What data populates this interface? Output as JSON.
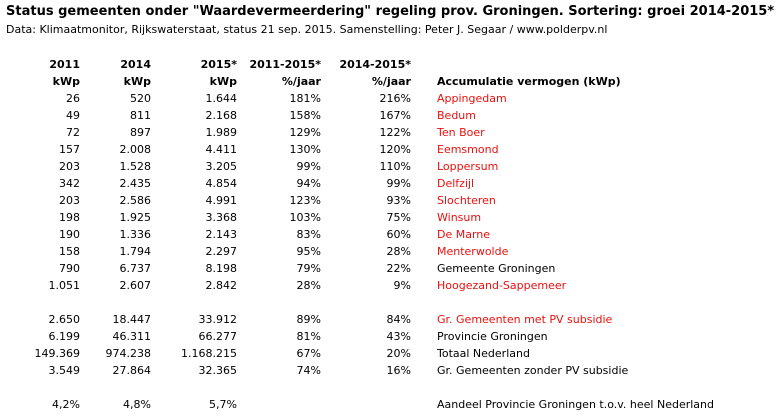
{
  "title": "Status gemeenten onder \"Waardevermeerdering\" regeling prov. Groningen. Sortering: groei 2014-2015*",
  "subtitle": "Data: Klimaatmonitor, Rijkswaterstaat, status 21 sep. 2015. Samenstelling: Peter J. Segaar / www.polderpv.nl",
  "headers": {
    "row1": [
      "2011",
      "2014",
      "2015*",
      "2011-2015*",
      "2014-2015*",
      ""
    ],
    "row2": [
      "kWp",
      "kWp",
      "kWp",
      "%/jaar",
      "%/jaar",
      "Accumulatie vermogen (kWp)"
    ]
  },
  "colors": {
    "red": "#e8110f",
    "black": "#000000"
  },
  "rows": [
    {
      "v2011": "26",
      "v2014": "520",
      "v2015": "1.644",
      "g1115": "181%",
      "g1415": "216%",
      "name": "Appingedam",
      "color": "red"
    },
    {
      "v2011": "49",
      "v2014": "811",
      "v2015": "2.168",
      "g1115": "158%",
      "g1415": "167%",
      "name": "Bedum",
      "color": "red"
    },
    {
      "v2011": "72",
      "v2014": "897",
      "v2015": "1.989",
      "g1115": "129%",
      "g1415": "122%",
      "name": "Ten Boer",
      "color": "red"
    },
    {
      "v2011": "157",
      "v2014": "2.008",
      "v2015": "4.411",
      "g1115": "130%",
      "g1415": "120%",
      "name": "Eemsmond",
      "color": "red"
    },
    {
      "v2011": "203",
      "v2014": "1.528",
      "v2015": "3.205",
      "g1115": "99%",
      "g1415": "110%",
      "name": "Loppersum",
      "color": "red"
    },
    {
      "v2011": "342",
      "v2014": "2.435",
      "v2015": "4.854",
      "g1115": "94%",
      "g1415": "99%",
      "name": "Delfzijl",
      "color": "red"
    },
    {
      "v2011": "203",
      "v2014": "2.586",
      "v2015": "4.991",
      "g1115": "123%",
      "g1415": "93%",
      "name": "Slochteren",
      "color": "red"
    },
    {
      "v2011": "198",
      "v2014": "1.925",
      "v2015": "3.368",
      "g1115": "103%",
      "g1415": "75%",
      "name": "Winsum",
      "color": "red"
    },
    {
      "v2011": "190",
      "v2014": "1.336",
      "v2015": "2.143",
      "g1115": "83%",
      "g1415": "60%",
      "name": "De Marne",
      "color": "red"
    },
    {
      "v2011": "158",
      "v2014": "1.794",
      "v2015": "2.297",
      "g1115": "95%",
      "g1415": "28%",
      "name": "Menterwolde",
      "color": "red"
    },
    {
      "v2011": "790",
      "v2014": "6.737",
      "v2015": "8.198",
      "g1115": "79%",
      "g1415": "22%",
      "name": "Gemeente Groningen",
      "color": "black"
    },
    {
      "v2011": "1.051",
      "v2014": "2.607",
      "v2015": "2.842",
      "g1115": "28%",
      "g1415": "9%",
      "name": "Hoogezand-Sappemeer",
      "color": "red"
    }
  ],
  "totals": [
    {
      "v2011": "2.650",
      "v2014": "18.447",
      "v2015": "33.912",
      "g1115": "89%",
      "g1415": "84%",
      "name": "Gr. Gemeenten met PV subsidie",
      "color": "red"
    },
    {
      "v2011": "6.199",
      "v2014": "46.311",
      "v2015": "66.277",
      "g1115": "81%",
      "g1415": "43%",
      "name": "Provincie Groningen",
      "color": "black"
    },
    {
      "v2011": "149.369",
      "v2014": "974.238",
      "v2015": "1.168.215",
      "g1115": "67%",
      "g1415": "20%",
      "name": "Totaal Nederland",
      "color": "black"
    },
    {
      "v2011": "3.549",
      "v2014": "27.864",
      "v2015": "32.365",
      "g1115": "74%",
      "g1415": "16%",
      "name": "Gr. Gemeenten zonder PV subsidie",
      "color": "black"
    }
  ],
  "share": {
    "v2011": "4,2%",
    "v2014": "4,8%",
    "v2015": "5,7%",
    "name": "Aandeel Provincie Groningen t.o.v. heel Nederland"
  }
}
